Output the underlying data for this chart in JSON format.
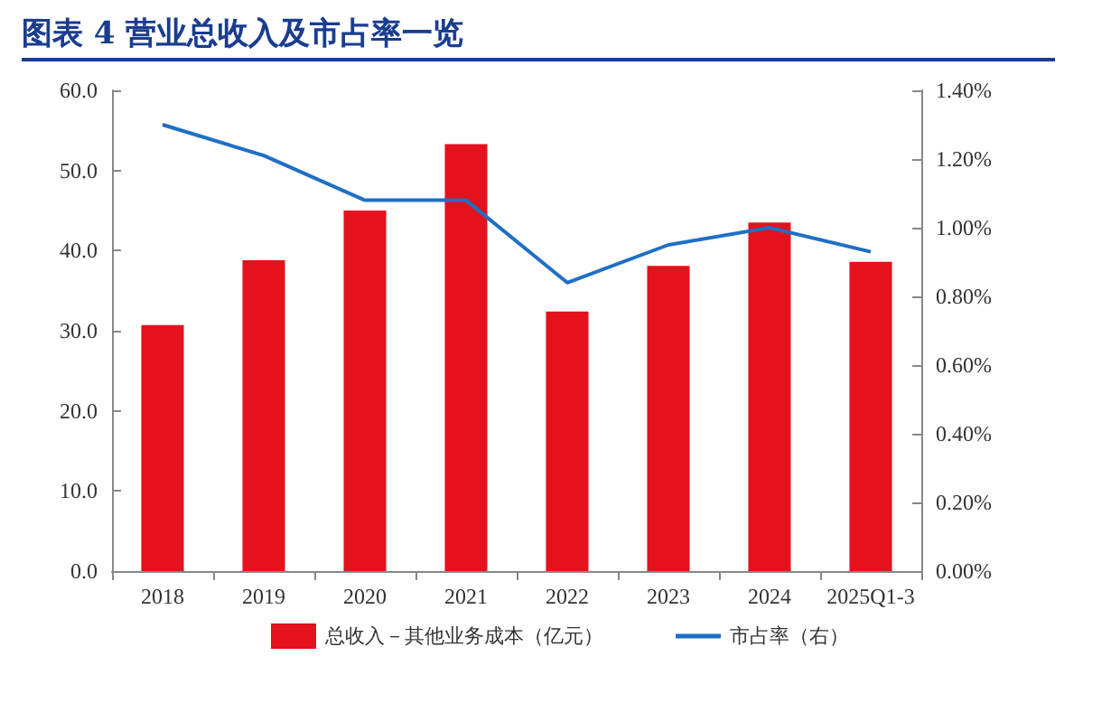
{
  "chart_data": {
    "type": "bar",
    "title": "图表 4   营业总收入及市占率一览",
    "categories": [
      "2018",
      "2019",
      "2020",
      "2021",
      "2022",
      "2023",
      "2024",
      "2025Q1-3"
    ],
    "series": [
      {
        "name": "总收入－其他业务成本（亿元）",
        "color": "#e3121d",
        "values": [
          30.7,
          38.8,
          45.0,
          53.3,
          32.4,
          38.1,
          43.5,
          38.6
        ]
      },
      {
        "name": "市占率（右）",
        "type": "line",
        "axis": "y2",
        "color": "#1f6fc5",
        "values": [
          1.3,
          1.21,
          1.08,
          1.08,
          0.84,
          0.95,
          1.0,
          0.93
        ]
      }
    ],
    "ylim": [
      0,
      60
    ],
    "yticks": [
      {
        "value": 0,
        "label": "0.0"
      },
      {
        "value": 10,
        "label": "10.0"
      },
      {
        "value": 20,
        "label": "20.0"
      },
      {
        "value": 30,
        "label": "30.0"
      },
      {
        "value": 40,
        "label": "40.0"
      },
      {
        "value": 50,
        "label": "50.0"
      },
      {
        "value": 60,
        "label": "60.0"
      }
    ],
    "y2lim": [
      0,
      1.4
    ],
    "y2ticks": [
      {
        "value": 0,
        "label": "0.00%"
      },
      {
        "value": 0.2,
        "label": "0.20%"
      },
      {
        "value": 0.4,
        "label": "0.40%"
      },
      {
        "value": 0.6,
        "label": "0.60%"
      },
      {
        "value": 0.8,
        "label": "0.80%"
      },
      {
        "value": 1.0,
        "label": "1.00%"
      },
      {
        "value": 1.2,
        "label": "1.20%"
      },
      {
        "value": 1.4,
        "label": "1.40%"
      }
    ],
    "grid": false,
    "legend": "bottom",
    "marker": "none"
  }
}
